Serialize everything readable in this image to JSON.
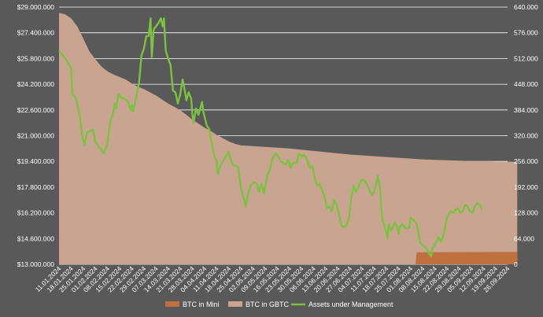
{
  "chart_data": {
    "type": "area",
    "legend_position": "bottom",
    "grid": true,
    "colors": {
      "background": "#595959",
      "mini": "#c0703f",
      "gbtc": "#c9a591",
      "aum": "#7dc142",
      "gridline": "#ffffff",
      "text": "#ffffff"
    },
    "y_left": {
      "min": 13000000,
      "max": 29000000,
      "ticks": [
        "$13.000.000",
        "$14.600.000",
        "$16.200.000",
        "$17.800.000",
        "$19.400.000",
        "$21.000.000",
        "$22.600.000",
        "$24.200.000",
        "$25.800.000",
        "$27.400.000",
        "$29.000.000"
      ]
    },
    "y_right": {
      "min": 0,
      "max": 640000,
      "ticks": [
        "0",
        "64.000",
        "128.000",
        "192.000",
        "256.000",
        "320.000",
        "384.000",
        "448.000",
        "512.000",
        "576.000",
        "640.000"
      ]
    },
    "x_dates": [
      "11.01.2024",
      "18.01.2024",
      "25.01.2024",
      "01.02.2024",
      "08.02.2024",
      "15.02.2024",
      "22.02.2024",
      "29.02.2024",
      "07.03.2024",
      "14.03.2024",
      "21.03.2024",
      "28.03.2024",
      "04.04.2024",
      "11.04.2024",
      "18.04.2024",
      "25.04.2024",
      "02.05.2024",
      "09.05.2024",
      "16.05.2024",
      "23.05.2024",
      "30.05.2024",
      "06.06.2024",
      "13.06.2024",
      "20.06.2024",
      "27.06.2024",
      "04.07.2024",
      "11.07.2024",
      "18.07.2024",
      "25.07.2024",
      "01.08.2024",
      "08.08.2024",
      "15.08.2024",
      "22.08.2024",
      "29.08.2024",
      "05.09.2024",
      "12.09.2024",
      "19.09.2024",
      "26.09.2024"
    ],
    "series": [
      {
        "name": "BTC in Mini",
        "type": "area",
        "axis": "right",
        "points": [
          [
            0,
            0
          ],
          [
            29.4,
            0
          ],
          [
            29.5,
            30000
          ],
          [
            37.8,
            31000
          ]
        ]
      },
      {
        "name": "BTC in GBTC",
        "type": "area",
        "axis": "right",
        "points": [
          [
            0,
            626000
          ],
          [
            0.5,
            622000
          ],
          [
            1,
            612000
          ],
          [
            1.5,
            592000
          ],
          [
            2,
            562000
          ],
          [
            2.5,
            530000
          ],
          [
            3,
            510000
          ],
          [
            3.5,
            492000
          ],
          [
            4,
            480000
          ],
          [
            4.5,
            472000
          ],
          [
            5,
            466000
          ],
          [
            5.5,
            460000
          ],
          [
            6,
            450000
          ],
          [
            6.5,
            442000
          ],
          [
            7,
            436000
          ],
          [
            7.5,
            428000
          ],
          [
            8,
            420000
          ],
          [
            8.5,
            410000
          ],
          [
            9,
            400000
          ],
          [
            9.5,
            392000
          ],
          [
            10,
            383000
          ],
          [
            10.5,
            372000
          ],
          [
            11,
            360000
          ],
          [
            11.5,
            350000
          ],
          [
            12,
            340000
          ],
          [
            12.5,
            332000
          ],
          [
            13,
            322000
          ],
          [
            13.5,
            314000
          ],
          [
            14,
            306000
          ],
          [
            14.5,
            300000
          ],
          [
            15,
            296000
          ],
          [
            16,
            294000
          ],
          [
            17,
            292000
          ],
          [
            18,
            290000
          ],
          [
            19,
            288000
          ],
          [
            20,
            285000
          ],
          [
            21,
            282000
          ],
          [
            22,
            279000
          ],
          [
            23,
            276000
          ],
          [
            24,
            273000
          ],
          [
            25,
            271000
          ],
          [
            26,
            269000
          ],
          [
            27,
            267000
          ],
          [
            28,
            265000
          ],
          [
            29,
            263000
          ],
          [
            30,
            261000
          ],
          [
            31,
            260000
          ],
          [
            32,
            259000
          ],
          [
            33,
            258000
          ],
          [
            34,
            257000
          ],
          [
            35,
            256500
          ],
          [
            36,
            256000
          ],
          [
            37,
            255500
          ],
          [
            37.8,
            255000
          ]
        ]
      },
      {
        "name": "Assets under Management",
        "type": "line",
        "axis": "left",
        "points": [
          [
            0,
            26300000
          ],
          [
            0.3,
            26000000
          ],
          [
            0.7,
            25600000
          ],
          [
            1,
            25200000
          ],
          [
            1.1,
            23600000
          ],
          [
            1.4,
            23300000
          ],
          [
            1.7,
            22300000
          ],
          [
            1.9,
            21000000
          ],
          [
            2.1,
            20400000
          ],
          [
            2.3,
            21200000
          ],
          [
            2.6,
            21300000
          ],
          [
            2.8,
            21400000
          ],
          [
            3,
            20600000
          ],
          [
            3.2,
            20400000
          ],
          [
            3.5,
            20100000
          ],
          [
            3.7,
            19900000
          ],
          [
            4,
            20500000
          ],
          [
            4.2,
            21800000
          ],
          [
            4.5,
            22500000
          ],
          [
            4.6,
            23000000
          ],
          [
            4.7,
            22700000
          ],
          [
            4.9,
            23600000
          ],
          [
            5.1,
            23400000
          ],
          [
            5.4,
            23300000
          ],
          [
            5.7,
            23100000
          ],
          [
            5.9,
            22600000
          ],
          [
            6,
            22900000
          ],
          [
            6.1,
            22500000
          ],
          [
            6.3,
            23200000
          ],
          [
            6.6,
            24300000
          ],
          [
            6.8,
            26000000
          ],
          [
            7,
            26400000
          ],
          [
            7.2,
            27200000
          ],
          [
            7.4,
            27200000
          ],
          [
            7.55,
            28300000
          ],
          [
            7.65,
            25900000
          ],
          [
            7.8,
            27600000
          ],
          [
            8,
            27800000
          ],
          [
            8.2,
            28000000
          ],
          [
            8.4,
            28300000
          ],
          [
            8.55,
            27800000
          ],
          [
            8.65,
            28300000
          ],
          [
            8.8,
            26300000
          ],
          [
            9,
            25800000
          ],
          [
            9.2,
            25400000
          ],
          [
            9.4,
            23800000
          ],
          [
            9.6,
            23700000
          ],
          [
            9.8,
            23000000
          ],
          [
            10,
            23600000
          ],
          [
            10.2,
            24500000
          ],
          [
            10.4,
            23700000
          ],
          [
            10.5,
            23200000
          ],
          [
            10.7,
            23700000
          ],
          [
            10.9,
            23300000
          ],
          [
            11,
            22300000
          ],
          [
            11.1,
            21800000
          ],
          [
            11.3,
            22700000
          ],
          [
            11.5,
            22300000
          ],
          [
            11.8,
            23100000
          ],
          [
            11.9,
            22500000
          ],
          [
            12.2,
            21600000
          ],
          [
            12.4,
            21400000
          ],
          [
            12.6,
            20500000
          ],
          [
            12.8,
            19800000
          ],
          [
            13,
            19400000
          ],
          [
            13.1,
            18600000
          ],
          [
            13.3,
            19100000
          ],
          [
            13.6,
            19500000
          ],
          [
            14,
            20000000
          ],
          [
            14.3,
            19200000
          ],
          [
            14.6,
            19100000
          ],
          [
            14.8,
            19000000
          ],
          [
            15,
            17700000
          ],
          [
            15.2,
            17200000
          ],
          [
            15.4,
            16600000
          ],
          [
            15.6,
            17400000
          ],
          [
            15.8,
            17900000
          ],
          [
            16.1,
            18100000
          ],
          [
            16.3,
            18000000
          ],
          [
            16.5,
            17500000
          ],
          [
            16.7,
            18000000
          ],
          [
            16.9,
            17400000
          ],
          [
            17.2,
            18600000
          ],
          [
            17.4,
            18900000
          ],
          [
            17.6,
            19600000
          ],
          [
            17.9,
            19900000
          ],
          [
            18.1,
            19700000
          ],
          [
            18.3,
            19400000
          ],
          [
            18.5,
            19300000
          ],
          [
            18.7,
            19200000
          ],
          [
            18.9,
            19500000
          ],
          [
            19.1,
            19000000
          ],
          [
            19.3,
            19300000
          ],
          [
            19.6,
            19300000
          ],
          [
            19.8,
            19900000
          ],
          [
            20,
            19700000
          ],
          [
            20.2,
            19800000
          ],
          [
            20.4,
            19600000
          ],
          [
            20.7,
            19000000
          ],
          [
            20.9,
            19100000
          ],
          [
            21.1,
            18300000
          ],
          [
            21.3,
            17900000
          ],
          [
            21.5,
            18000000
          ],
          [
            21.7,
            17600000
          ],
          [
            21.9,
            17200000
          ],
          [
            22.1,
            16500000
          ],
          [
            22.3,
            16600000
          ],
          [
            22.5,
            16300000
          ],
          [
            22.7,
            17000000
          ],
          [
            22.9,
            16700000
          ],
          [
            23.1,
            16100000
          ],
          [
            23.3,
            15400000
          ],
          [
            23.5,
            15300000
          ],
          [
            23.7,
            15400000
          ],
          [
            23.9,
            15800000
          ],
          [
            24.1,
            17100000
          ],
          [
            24.3,
            17900000
          ],
          [
            24.5,
            17500000
          ],
          [
            24.7,
            17800000
          ],
          [
            24.9,
            18200000
          ],
          [
            25.1,
            18300000
          ],
          [
            25.3,
            18100000
          ],
          [
            25.5,
            17800000
          ],
          [
            25.8,
            17300000
          ],
          [
            26,
            17500000
          ],
          [
            26.3,
            18500000
          ],
          [
            26.5,
            17600000
          ],
          [
            26.6,
            16300000
          ],
          [
            26.7,
            15700000
          ],
          [
            26.8,
            15500000
          ],
          [
            27,
            15000000
          ],
          [
            27.1,
            14600000
          ],
          [
            27.2,
            15500000
          ],
          [
            27.4,
            15100000
          ],
          [
            27.7,
            15600000
          ],
          [
            27.9,
            15300000
          ],
          [
            28,
            14900000
          ],
          [
            28.1,
            15300000
          ],
          [
            28.3,
            15500000
          ],
          [
            28.5,
            15300000
          ],
          [
            28.7,
            15200000
          ],
          [
            28.9,
            15300000
          ],
          [
            29,
            15900000
          ],
          [
            29.2,
            15800000
          ],
          [
            29.5,
            15500000
          ],
          [
            29.8,
            14300000
          ],
          [
            30,
            14200000
          ],
          [
            30.3,
            14000000
          ],
          [
            30.5,
            13700000
          ],
          [
            30.7,
            13500000
          ],
          [
            30.8,
            14000000
          ],
          [
            31,
            14200000
          ],
          [
            31.3,
            14700000
          ],
          [
            31.5,
            14400000
          ],
          [
            31.7,
            14800000
          ],
          [
            32,
            15900000
          ],
          [
            32.3,
            16300000
          ],
          [
            32.5,
            16200000
          ],
          [
            32.7,
            16400000
          ],
          [
            32.9,
            16500000
          ],
          [
            33.1,
            16200000
          ],
          [
            33.3,
            16300000
          ],
          [
            33.5,
            16700000
          ],
          [
            33.7,
            16600000
          ],
          [
            33.9,
            16300000
          ],
          [
            34.1,
            16200000
          ],
          [
            34.3,
            16600000
          ],
          [
            34.5,
            16800000
          ],
          [
            34.7,
            16700000
          ],
          [
            34.9,
            16400000
          ]
        ]
      }
    ]
  }
}
